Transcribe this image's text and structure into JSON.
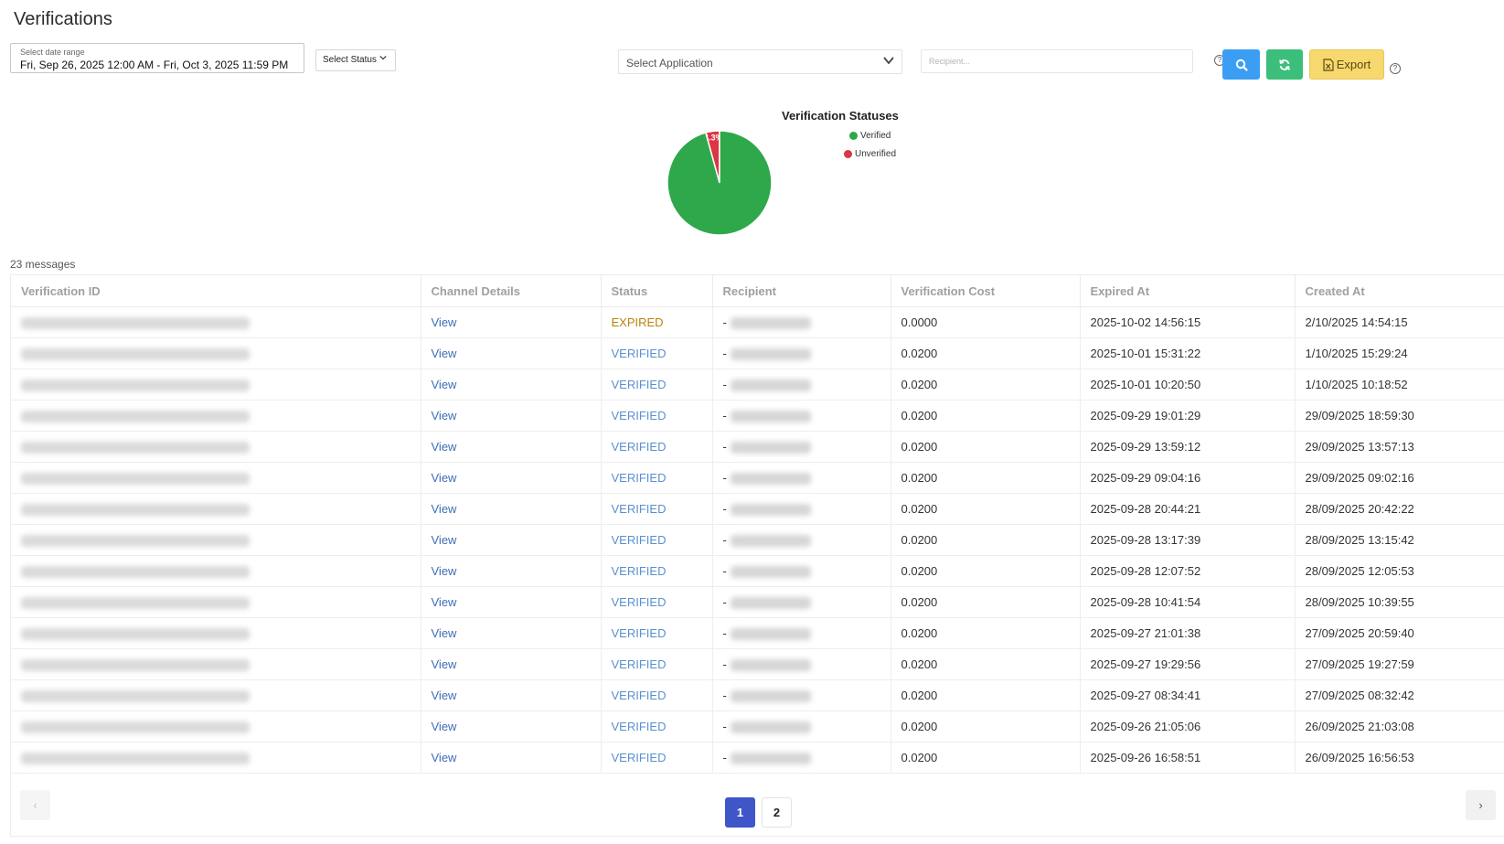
{
  "page": {
    "title": "Verifications"
  },
  "filters": {
    "date_range_label": "Select date range",
    "date_range_value": "Fri, Sep 26, 2025 12:00 AM - Fri, Oct 3, 2025 11:59 PM",
    "status_placeholder": "Select Status",
    "application_placeholder": "Select Application",
    "recipient_placeholder": "Recipient..."
  },
  "toolbar": {
    "search_icon": "search-icon",
    "refresh_icon": "refresh-icon",
    "export_label": "Export",
    "help_glyph": "?"
  },
  "chart_data": {
    "type": "pie",
    "title": "Verification Statuses",
    "labels": [
      "Verified",
      "Unverified"
    ],
    "values": [
      95.7,
      4.3
    ],
    "value_labels": [
      "95.7%",
      "4.3%"
    ],
    "colors": [
      "#2ea84a",
      "#dc3545"
    ],
    "legend": "right"
  },
  "summary": {
    "count_text": "23 messages"
  },
  "table": {
    "columns": [
      "Verification ID",
      "Channel Details",
      "Status",
      "Recipient",
      "Verification Cost",
      "Expired At",
      "Created At"
    ],
    "rows": [
      {
        "channel": "View",
        "status": "EXPIRED",
        "recipient_prefix": "-",
        "cost": "0.0000",
        "expired_at": "2025-10-02 14:56:15",
        "created_at": "2/10/2025 14:54:15"
      },
      {
        "channel": "View",
        "status": "VERIFIED",
        "recipient_prefix": "-",
        "cost": "0.0200",
        "expired_at": "2025-10-01 15:31:22",
        "created_at": "1/10/2025 15:29:24"
      },
      {
        "channel": "View",
        "status": "VERIFIED",
        "recipient_prefix": "-",
        "cost": "0.0200",
        "expired_at": "2025-10-01 10:20:50",
        "created_at": "1/10/2025 10:18:52"
      },
      {
        "channel": "View",
        "status": "VERIFIED",
        "recipient_prefix": "-",
        "cost": "0.0200",
        "expired_at": "2025-09-29 19:01:29",
        "created_at": "29/09/2025 18:59:30"
      },
      {
        "channel": "View",
        "status": "VERIFIED",
        "recipient_prefix": "-",
        "cost": "0.0200",
        "expired_at": "2025-09-29 13:59:12",
        "created_at": "29/09/2025 13:57:13"
      },
      {
        "channel": "View",
        "status": "VERIFIED",
        "recipient_prefix": "-",
        "cost": "0.0200",
        "expired_at": "2025-09-29 09:04:16",
        "created_at": "29/09/2025 09:02:16"
      },
      {
        "channel": "View",
        "status": "VERIFIED",
        "recipient_prefix": "-",
        "cost": "0.0200",
        "expired_at": "2025-09-28 20:44:21",
        "created_at": "28/09/2025 20:42:22"
      },
      {
        "channel": "View",
        "status": "VERIFIED",
        "recipient_prefix": "-",
        "cost": "0.0200",
        "expired_at": "2025-09-28 13:17:39",
        "created_at": "28/09/2025 13:15:42"
      },
      {
        "channel": "View",
        "status": "VERIFIED",
        "recipient_prefix": "-",
        "cost": "0.0200",
        "expired_at": "2025-09-28 12:07:52",
        "created_at": "28/09/2025 12:05:53"
      },
      {
        "channel": "View",
        "status": "VERIFIED",
        "recipient_prefix": "-",
        "cost": "0.0200",
        "expired_at": "2025-09-28 10:41:54",
        "created_at": "28/09/2025 10:39:55"
      },
      {
        "channel": "View",
        "status": "VERIFIED",
        "recipient_prefix": "-",
        "cost": "0.0200",
        "expired_at": "2025-09-27 21:01:38",
        "created_at": "27/09/2025 20:59:40"
      },
      {
        "channel": "View",
        "status": "VERIFIED",
        "recipient_prefix": "-",
        "cost": "0.0200",
        "expired_at": "2025-09-27 19:29:56",
        "created_at": "27/09/2025 19:27:59"
      },
      {
        "channel": "View",
        "status": "VERIFIED",
        "recipient_prefix": "-",
        "cost": "0.0200",
        "expired_at": "2025-09-27 08:34:41",
        "created_at": "27/09/2025 08:32:42"
      },
      {
        "channel": "View",
        "status": "VERIFIED",
        "recipient_prefix": "-",
        "cost": "0.0200",
        "expired_at": "2025-09-26 21:05:06",
        "created_at": "26/09/2025 21:03:08"
      },
      {
        "channel": "View",
        "status": "VERIFIED",
        "recipient_prefix": "-",
        "cost": "0.0200",
        "expired_at": "2025-09-26 16:58:51",
        "created_at": "26/09/2025 16:56:53"
      }
    ]
  },
  "pagination": {
    "pages": [
      "1",
      "2"
    ],
    "current": "1",
    "prev_glyph": "‹",
    "next_glyph": "›"
  }
}
